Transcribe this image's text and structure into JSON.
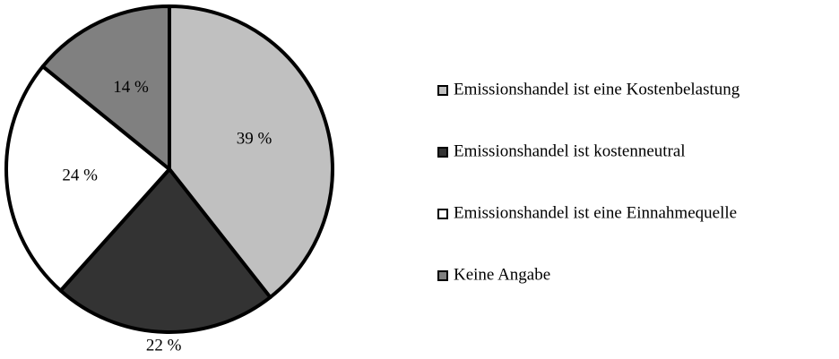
{
  "chart_data": {
    "type": "pie",
    "categories": [
      "Emissionshandel ist eine Kostenbelastung",
      "Emissionshandel ist kostenneutral",
      "Emissionshandel ist eine Einnahmequelle",
      "Keine Angabe"
    ],
    "values": [
      39,
      22,
      24,
      14
    ],
    "value_labels": [
      "39 %",
      "22 %",
      "24 %",
      "14 %"
    ],
    "colors": [
      "#c0c0c0",
      "#333333",
      "#ffffff",
      "#808080"
    ],
    "legend": "right"
  }
}
